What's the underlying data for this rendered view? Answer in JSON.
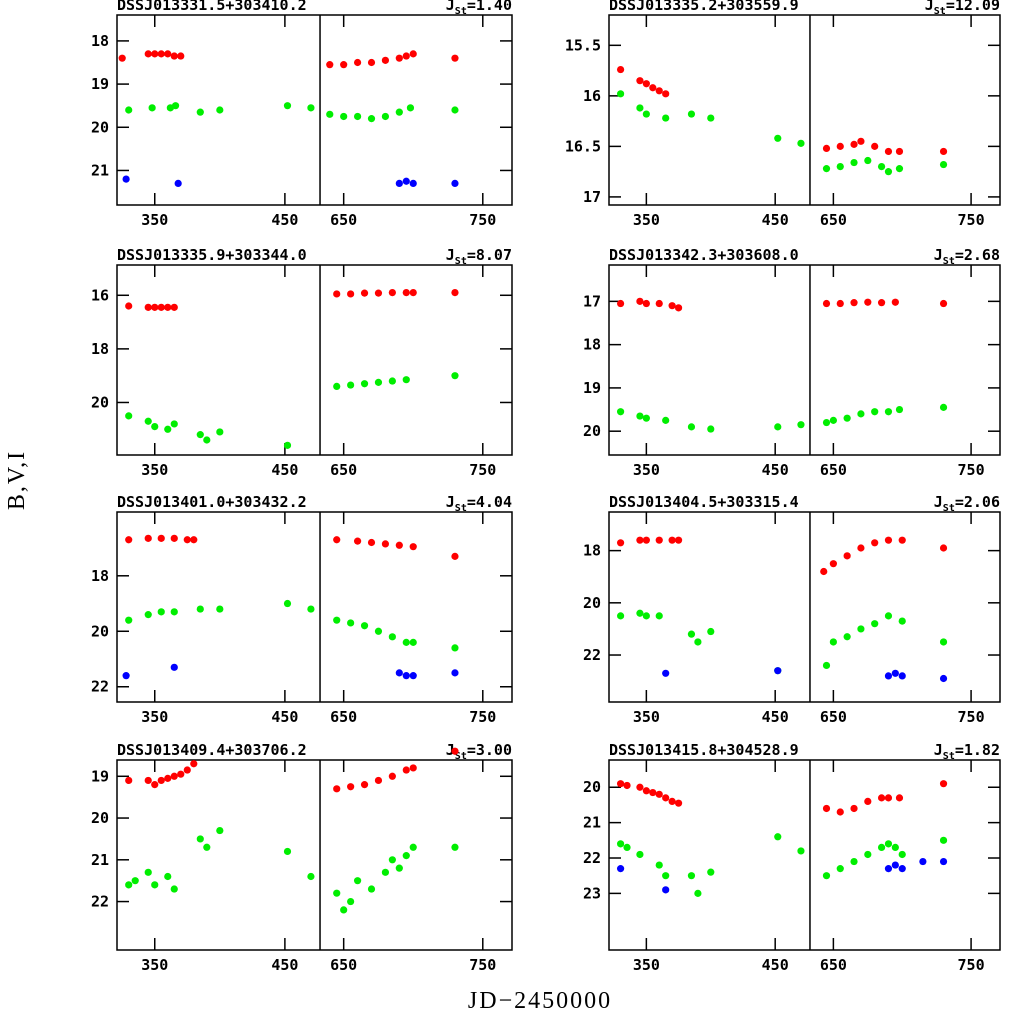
{
  "figure": {
    "xlabel": "JD−2450000",
    "ylabel": "B,V,I"
  },
  "chart_data": [
    {
      "type": "scatter",
      "title": "DSSJ013331.5+303410.2",
      "index": {
        "symbol": "J",
        "subscript": "St",
        "label": "=1.40"
      },
      "segments": [
        {
          "xlim": [
            321,
            477
          ],
          "xticks": [
            350,
            450
          ]
        },
        {
          "xlim": [
            633,
            771
          ],
          "xticks": [
            650,
            750
          ]
        }
      ],
      "ylim": [
        21.8,
        17.4
      ],
      "yticks": [
        18,
        19,
        20,
        21
      ],
      "series": [
        {
          "color": "#ff0000",
          "x": [
            325,
            345,
            350,
            355,
            360,
            365,
            370,
            640,
            650,
            660,
            670,
            680,
            690,
            695,
            700,
            730
          ],
          "values": [
            18.4,
            18.3,
            18.3,
            18.3,
            18.3,
            18.35,
            18.35,
            18.55,
            18.55,
            18.5,
            18.5,
            18.45,
            18.4,
            18.35,
            18.3,
            18.4
          ]
        },
        {
          "color": "#00ee00",
          "x": [
            330,
            348,
            362,
            366,
            385,
            400,
            452,
            470,
            640,
            650,
            660,
            670,
            680,
            690,
            698,
            730
          ],
          "values": [
            19.6,
            19.55,
            19.55,
            19.5,
            19.65,
            19.6,
            19.5,
            19.55,
            19.7,
            19.75,
            19.75,
            19.8,
            19.75,
            19.65,
            19.55,
            19.6
          ]
        },
        {
          "color": "#0000ff",
          "x": [
            328,
            368,
            690,
            695,
            700,
            730
          ],
          "values": [
            21.2,
            21.3,
            21.3,
            21.25,
            21.3,
            21.3
          ]
        }
      ]
    },
    {
      "type": "scatter",
      "title": "DSSJ013335.2+303559.9",
      "index": {
        "symbol": "J",
        "subscript": "St",
        "label": "=12.09"
      },
      "segments": [
        {
          "xlim": [
            321,
            477
          ],
          "xticks": [
            350,
            450
          ]
        },
        {
          "xlim": [
            633,
            771
          ],
          "xticks": [
            650,
            750
          ]
        }
      ],
      "ylim": [
        17.08,
        15.2
      ],
      "yticks": [
        15.5,
        16,
        16.5,
        17
      ],
      "series": [
        {
          "color": "#ff0000",
          "x": [
            330,
            345,
            350,
            355,
            360,
            365,
            645,
            655,
            665,
            670,
            680,
            690,
            698,
            730
          ],
          "values": [
            15.74,
            15.85,
            15.88,
            15.92,
            15.95,
            15.98,
            16.52,
            16.5,
            16.48,
            16.45,
            16.5,
            16.55,
            16.55,
            16.55
          ]
        },
        {
          "color": "#00ee00",
          "x": [
            330,
            345,
            350,
            365,
            385,
            400,
            452,
            470,
            645,
            655,
            665,
            675,
            685,
            690,
            698,
            730
          ],
          "values": [
            15.98,
            16.12,
            16.18,
            16.22,
            16.18,
            16.22,
            16.42,
            16.47,
            16.72,
            16.7,
            16.66,
            16.64,
            16.7,
            16.75,
            16.72,
            16.68
          ]
        }
      ]
    },
    {
      "type": "scatter",
      "title": "DSSJ013335.9+303344.0",
      "index": {
        "symbol": "J",
        "subscript": "St",
        "label": "=8.07"
      },
      "segments": [
        {
          "xlim": [
            321,
            477
          ],
          "xticks": [
            350,
            450
          ]
        },
        {
          "xlim": [
            633,
            771
          ],
          "xticks": [
            650,
            750
          ]
        }
      ],
      "ylim": [
        21.96,
        14.87
      ],
      "yticks": [
        16,
        18,
        20
      ],
      "series": [
        {
          "color": "#ff0000",
          "x": [
            330,
            345,
            350,
            355,
            360,
            365,
            645,
            655,
            665,
            675,
            685,
            695,
            700,
            730
          ],
          "values": [
            16.4,
            16.45,
            16.45,
            16.45,
            16.45,
            16.45,
            15.95,
            15.95,
            15.92,
            15.92,
            15.9,
            15.9,
            15.9,
            15.9
          ]
        },
        {
          "color": "#00ee00",
          "x": [
            330,
            345,
            350,
            360,
            365,
            385,
            390,
            400,
            452,
            645,
            655,
            665,
            675,
            685,
            695,
            730
          ],
          "values": [
            20.5,
            20.7,
            20.9,
            21.0,
            20.8,
            21.2,
            21.4,
            21.1,
            21.6,
            19.4,
            19.35,
            19.3,
            19.25,
            19.2,
            19.15,
            19.0
          ]
        }
      ]
    },
    {
      "type": "scatter",
      "title": "DSSJ013342.3+303608.0",
      "index": {
        "symbol": "J",
        "subscript": "St",
        "label": "=2.68"
      },
      "segments": [
        {
          "xlim": [
            321,
            477
          ],
          "xticks": [
            350,
            450
          ]
        },
        {
          "xlim": [
            633,
            771
          ],
          "xticks": [
            650,
            750
          ]
        }
      ],
      "ylim": [
        20.55,
        16.16
      ],
      "yticks": [
        17,
        18,
        19,
        20
      ],
      "series": [
        {
          "color": "#ff0000",
          "x": [
            330,
            345,
            350,
            360,
            370,
            375,
            645,
            655,
            665,
            675,
            685,
            695,
            730
          ],
          "values": [
            17.05,
            17.0,
            17.05,
            17.05,
            17.1,
            17.15,
            17.05,
            17.05,
            17.03,
            17.02,
            17.03,
            17.02,
            17.05
          ]
        },
        {
          "color": "#00ee00",
          "x": [
            330,
            345,
            350,
            365,
            385,
            400,
            452,
            470,
            645,
            650,
            660,
            670,
            680,
            690,
            698,
            730
          ],
          "values": [
            19.55,
            19.65,
            19.7,
            19.75,
            19.9,
            19.95,
            19.9,
            19.85,
            19.8,
            19.75,
            19.7,
            19.6,
            19.55,
            19.55,
            19.5,
            19.45
          ]
        }
      ]
    },
    {
      "type": "scatter",
      "title": "DSSJ013401.0+303432.2",
      "index": {
        "symbol": "J",
        "subscript": "St",
        "label": "=4.04"
      },
      "segments": [
        {
          "xlim": [
            321,
            477
          ],
          "xticks": [
            350,
            450
          ]
        },
        {
          "xlim": [
            633,
            771
          ],
          "xticks": [
            650,
            750
          ]
        }
      ],
      "ylim": [
        22.55,
        15.7
      ],
      "yticks": [
        18,
        20,
        22
      ],
      "series": [
        {
          "color": "#ff0000",
          "x": [
            330,
            345,
            355,
            365,
            375,
            380,
            645,
            660,
            670,
            680,
            690,
            700,
            730
          ],
          "values": [
            16.7,
            16.65,
            16.65,
            16.65,
            16.7,
            16.7,
            16.7,
            16.75,
            16.8,
            16.85,
            16.9,
            16.95,
            17.3
          ]
        },
        {
          "color": "#00ee00",
          "x": [
            330,
            345,
            355,
            365,
            385,
            400,
            452,
            470,
            645,
            655,
            665,
            675,
            685,
            695,
            700,
            730
          ],
          "values": [
            19.6,
            19.4,
            19.3,
            19.3,
            19.2,
            19.2,
            19.0,
            19.2,
            19.6,
            19.7,
            19.8,
            20.0,
            20.2,
            20.4,
            20.4,
            20.6
          ]
        },
        {
          "color": "#0000ff",
          "x": [
            328,
            365,
            690,
            695,
            700,
            730
          ],
          "values": [
            21.6,
            21.3,
            21.5,
            21.6,
            21.6,
            21.5
          ]
        }
      ]
    },
    {
      "type": "scatter",
      "title": "DSSJ013404.5+303315.4",
      "index": {
        "symbol": "J",
        "subscript": "St",
        "label": "=2.06"
      },
      "segments": [
        {
          "xlim": [
            321,
            477
          ],
          "xticks": [
            350,
            450
          ]
        },
        {
          "xlim": [
            633,
            771
          ],
          "xticks": [
            650,
            750
          ]
        }
      ],
      "ylim": [
        23.8,
        16.52
      ],
      "yticks": [
        18,
        20,
        22
      ],
      "series": [
        {
          "color": "#ff0000",
          "x": [
            330,
            345,
            350,
            360,
            370,
            375,
            643,
            650,
            660,
            670,
            680,
            690,
            700,
            730
          ],
          "values": [
            17.7,
            17.6,
            17.6,
            17.6,
            17.6,
            17.6,
            18.8,
            18.5,
            18.2,
            17.9,
            17.7,
            17.6,
            17.6,
            17.9
          ]
        },
        {
          "color": "#00ee00",
          "x": [
            330,
            345,
            350,
            360,
            385,
            390,
            400,
            452,
            645,
            650,
            660,
            670,
            680,
            690,
            700,
            730
          ],
          "values": [
            20.5,
            20.4,
            20.5,
            20.5,
            21.2,
            21.5,
            21.1,
            22.6,
            22.4,
            21.5,
            21.3,
            21.0,
            20.8,
            20.5,
            20.7,
            21.5
          ]
        },
        {
          "color": "#0000ff",
          "x": [
            365,
            452,
            690,
            695,
            700,
            730
          ],
          "values": [
            22.7,
            22.6,
            22.8,
            22.7,
            22.8,
            22.9
          ]
        }
      ]
    },
    {
      "type": "scatter",
      "title": "DSSJ013409.4+303706.2",
      "index": {
        "symbol": "J",
        "subscript": "St",
        "label": "=3.00"
      },
      "segments": [
        {
          "xlim": [
            321,
            477
          ],
          "xticks": [
            350,
            450
          ]
        },
        {
          "xlim": [
            633,
            771
          ],
          "xticks": [
            650,
            750
          ]
        }
      ],
      "ylim": [
        23.16,
        18.61
      ],
      "yticks": [
        19,
        20,
        21,
        22
      ],
      "series": [
        {
          "color": "#ff0000",
          "x": [
            330,
            345,
            350,
            355,
            360,
            365,
            370,
            375,
            380,
            645,
            655,
            665,
            675,
            685,
            695,
            700,
            730
          ],
          "values": [
            19.1,
            19.1,
            19.2,
            19.1,
            19.05,
            19.0,
            18.95,
            18.85,
            18.7,
            19.3,
            19.25,
            19.2,
            19.1,
            19.0,
            18.85,
            18.8,
            18.4
          ]
        },
        {
          "color": "#00ee00",
          "x": [
            330,
            335,
            345,
            350,
            360,
            365,
            385,
            390,
            400,
            452,
            470,
            645,
            650,
            655,
            660,
            670,
            680,
            685,
            690,
            695,
            700,
            730
          ],
          "values": [
            21.6,
            21.5,
            21.3,
            21.6,
            21.4,
            21.7,
            20.5,
            20.7,
            20.3,
            20.8,
            21.4,
            21.8,
            22.2,
            22.0,
            21.5,
            21.7,
            21.3,
            21.0,
            21.2,
            20.9,
            20.7,
            20.7
          ]
        }
      ]
    },
    {
      "type": "scatter",
      "title": "DSSJ013415.8+304528.9",
      "index": {
        "symbol": "J",
        "subscript": "St",
        "label": "=1.82"
      },
      "segments": [
        {
          "xlim": [
            321,
            477
          ],
          "xticks": [
            350,
            450
          ]
        },
        {
          "xlim": [
            633,
            771
          ],
          "xticks": [
            650,
            750
          ]
        }
      ],
      "ylim": [
        24.6,
        19.23
      ],
      "yticks": [
        20,
        21,
        22,
        23
      ],
      "series": [
        {
          "color": "#ff0000",
          "x": [
            330,
            335,
            345,
            350,
            355,
            360,
            365,
            370,
            375,
            645,
            655,
            665,
            675,
            685,
            690,
            698,
            730
          ],
          "values": [
            19.9,
            19.95,
            20.0,
            20.1,
            20.15,
            20.2,
            20.3,
            20.4,
            20.45,
            20.6,
            20.7,
            20.6,
            20.4,
            20.3,
            20.3,
            20.3,
            19.9
          ]
        },
        {
          "color": "#00ee00",
          "x": [
            330,
            335,
            345,
            360,
            365,
            385,
            390,
            400,
            452,
            470,
            645,
            655,
            665,
            675,
            685,
            690,
            695,
            700,
            730
          ],
          "values": [
            21.6,
            21.7,
            21.9,
            22.2,
            22.5,
            22.5,
            23.0,
            22.4,
            21.4,
            21.8,
            22.5,
            22.3,
            22.1,
            21.9,
            21.7,
            21.6,
            21.7,
            21.9,
            21.5
          ]
        },
        {
          "color": "#0000ff",
          "x": [
            330,
            365,
            690,
            695,
            700,
            715,
            730
          ],
          "values": [
            22.3,
            22.9,
            22.3,
            22.2,
            22.3,
            22.1,
            22.1
          ]
        }
      ]
    }
  ]
}
